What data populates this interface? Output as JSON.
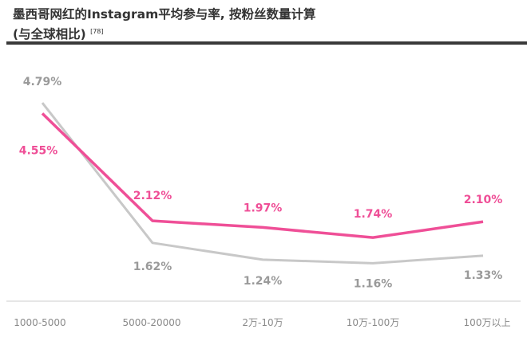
{
  "title": "墨西哥网红的Instagram平均参与率, 按粉丝数量计算",
  "subtitle": "(与全球相比)",
  "ref": "[78]",
  "chart_data": {
    "type": "line",
    "categories": [
      "1000-5000",
      "5000-20000",
      "2万-10万",
      "10万-100万",
      "100万以上"
    ],
    "series": [
      {
        "values": [
          4.55,
          2.12,
          1.97,
          1.74,
          2.1
        ],
        "labels": [
          "4.55%",
          "2.12%",
          "1.97%",
          "1.74%",
          "2.10%"
        ],
        "color": "#ef4f97"
      },
      {
        "values": [
          4.79,
          1.62,
          1.24,
          1.16,
          1.33
        ],
        "labels": [
          "4.79%",
          "1.62%",
          "1.24%",
          "1.16%",
          "1.33%"
        ],
        "color": "#c8c8c8"
      }
    ],
    "ylim": [
      0.3,
      6
    ],
    "grid": false,
    "label_colors": {
      "pink": "#ef4f97",
      "gray": "#9a9a9a"
    }
  }
}
